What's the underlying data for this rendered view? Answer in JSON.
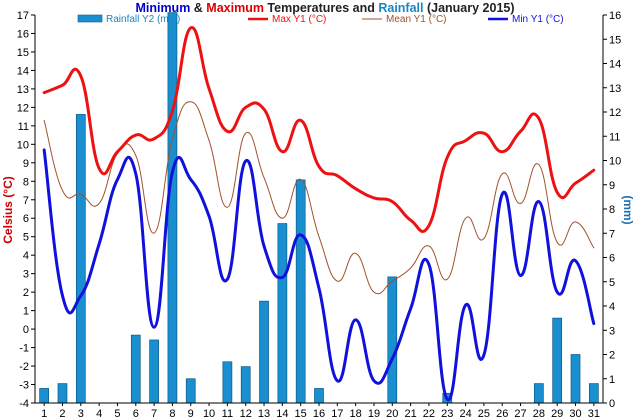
{
  "chart_data": {
    "type": "bar+line",
    "title_parts": [
      {
        "text": "Minimum",
        "color": "#0000cc"
      },
      {
        "text": " & ",
        "color": "#222222"
      },
      {
        "text": "Maximum",
        "color": "#e00000"
      },
      {
        "text": " Temperatures and ",
        "color": "#222222"
      },
      {
        "text": "Rainfall",
        "color": "#1a86c2"
      },
      {
        "text": " (January 2015)",
        "color": "#222222"
      }
    ],
    "ylabel_left": "Celsius (°C)",
    "ylabel_right": "(mm)",
    "ylim_left": [
      -4,
      17
    ],
    "ylim_right": [
      0,
      16
    ],
    "y_ticks_left": [
      -4,
      -3,
      -2,
      -1,
      0,
      1,
      2,
      3,
      4,
      5,
      6,
      7,
      8,
      9,
      10,
      11,
      12,
      13,
      14,
      15,
      16,
      17
    ],
    "y_ticks_right": [
      0,
      1,
      2,
      3,
      4,
      5,
      6,
      7,
      8,
      9,
      10,
      11,
      12,
      13,
      14,
      15,
      16
    ],
    "categories": [
      "1",
      "2",
      "3",
      "4",
      "5",
      "6",
      "7",
      "8",
      "9",
      "10",
      "11",
      "12",
      "13",
      "14",
      "15",
      "16",
      "17",
      "18",
      "19",
      "20",
      "21",
      "22",
      "23",
      "24",
      "25",
      "26",
      "27",
      "28",
      "29",
      "30",
      "31"
    ],
    "grid": false,
    "legend_position": "top",
    "series": [
      {
        "name": "Rainfall Y2 (mm)",
        "kind": "bar",
        "axis": "right",
        "color": "#1a8fcf",
        "values": [
          0.6,
          0.8,
          11.9,
          0,
          0,
          2.8,
          2.6,
          16.1,
          1.0,
          0,
          1.7,
          1.5,
          4.2,
          7.4,
          9.2,
          0.6,
          0,
          0,
          0,
          5.2,
          0,
          0,
          0.4,
          0,
          0,
          0,
          0,
          0.8,
          3.5,
          2.0,
          0.8
        ]
      },
      {
        "name": "Max Y1 (°C)",
        "kind": "line",
        "axis": "left",
        "color": "#ee1111",
        "values": [
          12.8,
          13.2,
          13.7,
          8.7,
          9.6,
          10.5,
          10.3,
          11.8,
          16.3,
          13.0,
          10.7,
          12.0,
          11.9,
          9.6,
          11.3,
          8.8,
          8.3,
          7.6,
          7.1,
          6.9,
          5.9,
          5.6,
          9.3,
          10.2,
          10.6,
          9.6,
          10.7,
          11.4,
          7.4,
          7.9,
          8.6
        ]
      },
      {
        "name": "Mean Y1 (°C)",
        "kind": "line",
        "axis": "left",
        "color": "#a0522d",
        "values": [
          11.3,
          7.5,
          7.3,
          6.8,
          9.5,
          9.4,
          5.2,
          10.3,
          12.3,
          10.2,
          6.6,
          10.6,
          8.2,
          6.0,
          8.1,
          5.0,
          2.6,
          4.1,
          2.0,
          2.6,
          3.3,
          4.5,
          2.7,
          6.0,
          4.9,
          8.4,
          6.8,
          8.9,
          4.7,
          5.8,
          4.4
        ]
      },
      {
        "name": "Min Y1 (°C)",
        "kind": "line",
        "axis": "left",
        "color": "#1111dd",
        "values": [
          9.7,
          1.8,
          1.8,
          4.6,
          8.1,
          8.4,
          0.1,
          8.5,
          8.1,
          6.1,
          2.7,
          9.1,
          4.5,
          2.8,
          5.1,
          2.2,
          -2.8,
          0.5,
          -2.8,
          -1.6,
          1.1,
          3.5,
          -3.8,
          1.3,
          -1.4,
          7.3,
          2.9,
          6.9,
          2.0,
          3.7,
          0.3
        ]
      }
    ]
  }
}
